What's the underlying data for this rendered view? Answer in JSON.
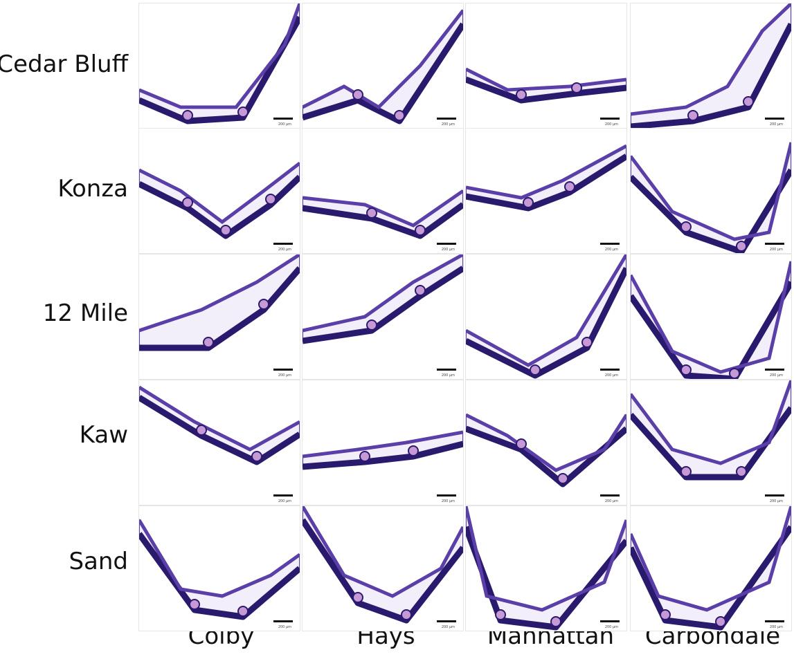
{
  "rows": [
    "Cedar Bluff",
    "Konza",
    "12 Mile",
    "Kaw",
    "Sand"
  ],
  "columns": [
    "Colby",
    "Hays",
    "Manhattan",
    "Carbondale"
  ],
  "scale_bar_text": "200 µm",
  "colors": {
    "tissue_dark": "#2a1a6e",
    "tissue_mid": "#5b3fa8",
    "tissue_pink": "#c79ad6",
    "cell_fill": "#f3effa"
  }
}
